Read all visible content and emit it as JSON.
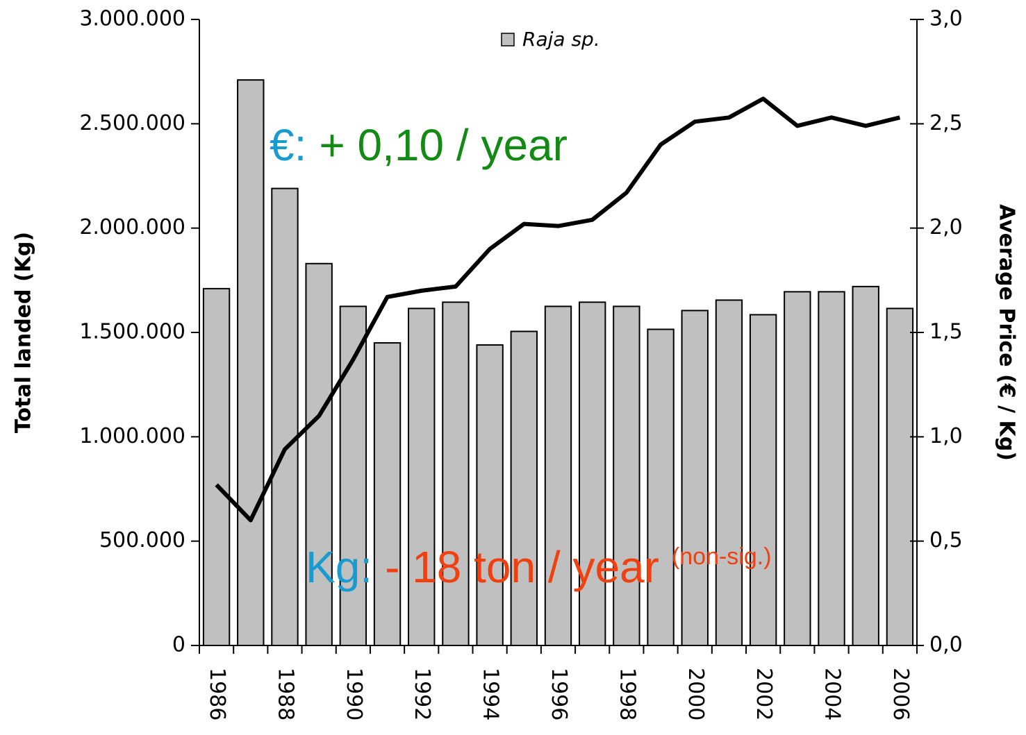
{
  "chart_data": {
    "type": "bar_line",
    "categories": [
      "1986",
      null,
      "1988",
      null,
      "1990",
      null,
      "1992",
      null,
      "1994",
      null,
      "1996",
      null,
      "1998",
      null,
      "2000",
      null,
      "2002",
      null,
      "2004",
      null,
      "2006"
    ],
    "series": [
      {
        "name": "Raja sp.",
        "type": "bar",
        "color": "#c0c0c0",
        "values": [
          1710000,
          2710000,
          2190000,
          1830000,
          1625000,
          1450000,
          1615000,
          1645000,
          1440000,
          1505000,
          1625000,
          1645000,
          1625000,
          1515000,
          1605000,
          1655000,
          1585000,
          1695000,
          1695000,
          1720000,
          1615000
        ]
      },
      {
        "type": "line",
        "axis": "y2",
        "color": "#000000",
        "values": [
          0.77,
          0.6,
          0.94,
          1.1,
          1.37,
          1.67,
          1.7,
          1.72,
          1.9,
          2.02,
          2.01,
          2.04,
          2.17,
          2.4,
          2.51,
          2.53,
          2.62,
          2.49,
          2.53,
          2.49,
          2.53
        ]
      }
    ],
    "ylabel": "Total landed (Kg)",
    "y2label": "Average Price (€ / Kg)",
    "ylim": [
      0,
      3000000
    ],
    "yticks": [
      {
        "value": 0,
        "label": "0"
      },
      {
        "value": 500000,
        "label": "500.000"
      },
      {
        "value": 1000000,
        "label": "1.000.000"
      },
      {
        "value": 1500000,
        "label": "1.500.000"
      },
      {
        "value": 2000000,
        "label": "2.000.000"
      },
      {
        "value": 2500000,
        "label": "2.500.000"
      },
      {
        "value": 3000000,
        "label": "3.000.000"
      }
    ],
    "y2lim": [
      0,
      3
    ],
    "y2ticks": [
      {
        "value": 0,
        "label": "0,0"
      },
      {
        "value": 0.5,
        "label": "0,5"
      },
      {
        "value": 1,
        "label": "1,0"
      },
      {
        "value": 1.5,
        "label": "1,5"
      },
      {
        "value": 2,
        "label": "2,0"
      },
      {
        "value": 2.5,
        "label": "2,5"
      },
      {
        "value": 3,
        "label": "3,0"
      }
    ],
    "legend": "top",
    "annotations": [
      {
        "parts": [
          {
            "text": "€:",
            "color": "#1a9bd0"
          },
          {
            "text": "+ 0,10 / year",
            "color": "#138a13"
          }
        ]
      },
      {
        "parts": [
          {
            "text": "Kg:",
            "color": "#1a9bd0"
          },
          {
            "text": "- 18 ton / year",
            "color": "#f04010"
          },
          {
            "text": "(non-sig.)",
            "color": "#f04010"
          }
        ]
      }
    ]
  }
}
